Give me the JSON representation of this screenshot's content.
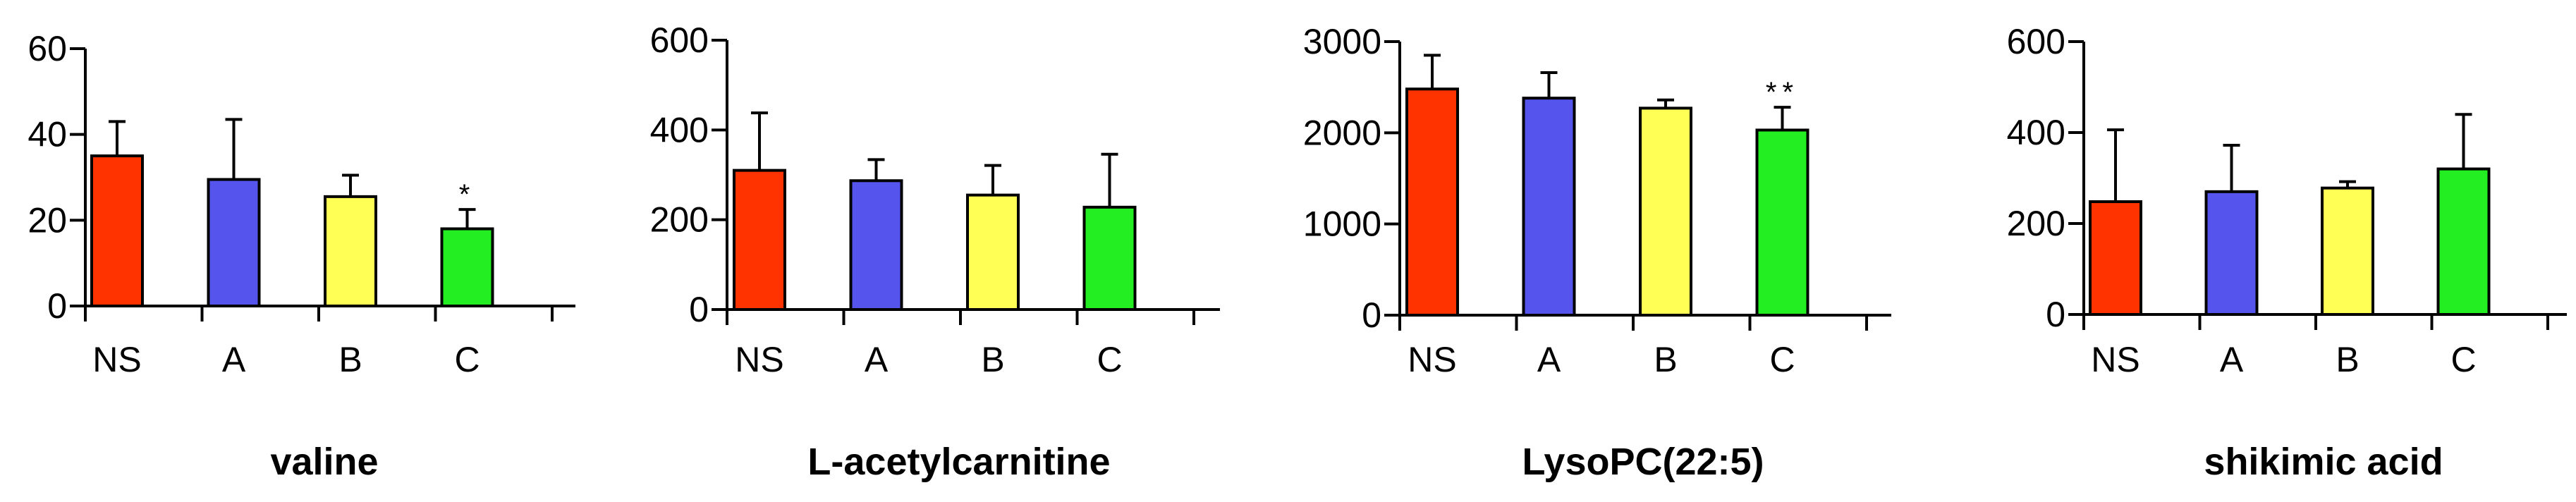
{
  "colors": {
    "NS": "#ff3300",
    "A": "#5555ee",
    "B": "#ffff55",
    "C": "#22ee22",
    "axis": "#000000",
    "edge": "#000000"
  },
  "chart_data": [
    {
      "type": "bar",
      "title": "valine",
      "categories": [
        "NS",
        "A",
        "B",
        "C"
      ],
      "values": [
        35,
        29.5,
        25.5,
        18
      ],
      "errors": [
        8,
        14,
        5,
        4.5
      ],
      "annotations": [
        "",
        "",
        "",
        "*"
      ],
      "ylim": [
        0,
        60
      ],
      "yticks": [
        0,
        20,
        40,
        60
      ],
      "ytick_labels": [
        "0",
        "20",
        "40",
        "60"
      ]
    },
    {
      "type": "bar",
      "title": "L-acetylcarnitine",
      "categories": [
        "NS",
        "A",
        "B",
        "C"
      ],
      "values": [
        310,
        287,
        255,
        228
      ],
      "errors": [
        128,
        47,
        66,
        118
      ],
      "annotations": [
        "",
        "",
        "",
        ""
      ],
      "ylim": [
        0,
        600
      ],
      "yticks": [
        0,
        200,
        400,
        600
      ],
      "ytick_labels": [
        "0",
        "200",
        "400",
        "600"
      ]
    },
    {
      "type": "bar",
      "title": "LysoPC(22:5)",
      "categories": [
        "NS",
        "A",
        "B",
        "C"
      ],
      "values": [
        2480,
        2380,
        2270,
        2030
      ],
      "errors": [
        370,
        280,
        90,
        250
      ],
      "annotations": [
        "",
        "",
        "",
        "**"
      ],
      "ylim": [
        0,
        3000
      ],
      "yticks": [
        0,
        1000,
        2000,
        3000
      ],
      "ytick_labels": [
        "0",
        "1000",
        "2000",
        "3000"
      ]
    },
    {
      "type": "bar",
      "title": "shikimic acid",
      "categories": [
        "NS",
        "A",
        "B",
        "C"
      ],
      "values": [
        248,
        270,
        278,
        320
      ],
      "errors": [
        158,
        102,
        14,
        120
      ],
      "annotations": [
        "",
        "",
        "",
        ""
      ],
      "ylim": [
        0,
        600
      ],
      "yticks": [
        0,
        200,
        400,
        600
      ],
      "ytick_labels": [
        "0",
        "200",
        "400",
        "600"
      ]
    }
  ]
}
